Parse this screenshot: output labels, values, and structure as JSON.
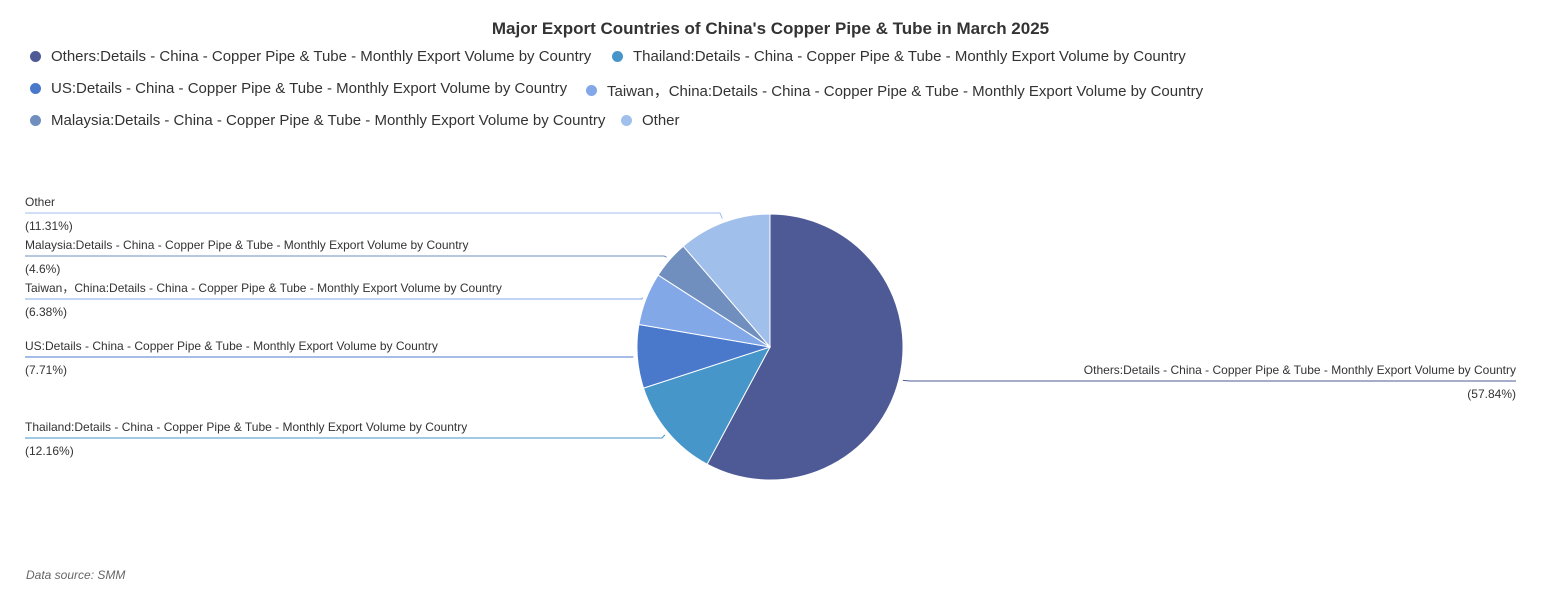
{
  "chart_data": {
    "type": "pie",
    "title": "Major Export Countries of China's Copper Pipe & Tube in March 2025",
    "slices": [
      {
        "name": "Others:Details - China - Copper Pipe & Tube - Monthly Export Volume by Country",
        "value": 57.84,
        "label": "(57.84%)",
        "color": "#4e5a96"
      },
      {
        "name": "Thailand:Details - China - Copper Pipe & Tube - Monthly Export Volume by Country",
        "value": 12.16,
        "label": "(12.16%)",
        "color": "#4796c9"
      },
      {
        "name": "US:Details - China - Copper Pipe & Tube - Monthly Export Volume by Country",
        "value": 7.71,
        "label": "(7.71%)",
        "color": "#4a79cc"
      },
      {
        "name": "Taiwan，China:Details - China - Copper Pipe & Tube - Monthly Export Volume by Country",
        "value": 6.38,
        "label": "(6.38%)",
        "color": "#82a8e8"
      },
      {
        "name": "Malaysia:Details - China - Copper Pipe & Tube - Monthly Export Volume by Country",
        "value": 4.6,
        "label": "(4.6%)",
        "color": "#708fbe"
      },
      {
        "name": "Other",
        "value": 11.31,
        "label": "(11.31%)",
        "color": "#a0bfeb"
      }
    ],
    "legend_position": "top"
  },
  "source": "Data source:  SMM"
}
